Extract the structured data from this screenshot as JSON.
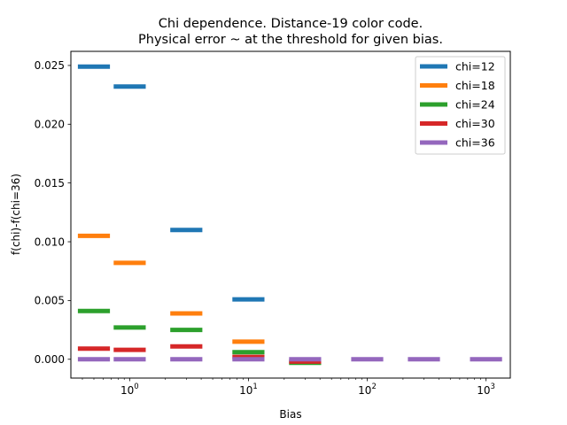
{
  "chart_data": {
    "type": "scatter",
    "marker": "horizontal-bar",
    "title_lines": [
      "Chi dependence. Distance-19 color code.",
      "Physical error ~ at the threshold for given bias."
    ],
    "xlabel": "Bias",
    "ylabel": "f(chi)-f(chi=36)",
    "xscale": "log",
    "xlim": [
      0.32,
      1600
    ],
    "ylim": [
      -0.0016,
      0.0262
    ],
    "x_ticks": [
      {
        "value": 1,
        "base": "10",
        "exp": "0"
      },
      {
        "value": 10,
        "base": "10",
        "exp": "1"
      },
      {
        "value": 100,
        "base": "10",
        "exp": "2"
      },
      {
        "value": 1000,
        "base": "10",
        "exp": "3"
      }
    ],
    "y_ticks": [
      {
        "value": 0.0,
        "label": "0.000"
      },
      {
        "value": 0.005,
        "label": "0.005"
      },
      {
        "value": 0.01,
        "label": "0.010"
      },
      {
        "value": 0.015,
        "label": "0.015"
      },
      {
        "value": 0.02,
        "label": "0.020"
      },
      {
        "value": 0.025,
        "label": "0.025"
      }
    ],
    "grid": false,
    "legend_position": "upper right",
    "series": [
      {
        "name": "chi=12",
        "color": "#1f77b4",
        "points": [
          {
            "x": 0.5,
            "y": 0.0249
          },
          {
            "x": 1.0,
            "y": 0.0232
          },
          {
            "x": 3.0,
            "y": 0.011
          },
          {
            "x": 10.0,
            "y": 0.0051
          }
        ]
      },
      {
        "name": "chi=18",
        "color": "#ff7f0e",
        "points": [
          {
            "x": 0.5,
            "y": 0.0105
          },
          {
            "x": 1.0,
            "y": 0.0082
          },
          {
            "x": 3.0,
            "y": 0.0039
          },
          {
            "x": 10.0,
            "y": 0.0015
          }
        ]
      },
      {
        "name": "chi=24",
        "color": "#2ca02c",
        "points": [
          {
            "x": 0.5,
            "y": 0.0041
          },
          {
            "x": 1.0,
            "y": 0.0027
          },
          {
            "x": 3.0,
            "y": 0.0025
          },
          {
            "x": 10.0,
            "y": 0.0006
          },
          {
            "x": 30.0,
            "y": -0.0003
          }
        ]
      },
      {
        "name": "chi=30",
        "color": "#d62728",
        "points": [
          {
            "x": 0.5,
            "y": 0.0009
          },
          {
            "x": 1.0,
            "y": 0.0008
          },
          {
            "x": 3.0,
            "y": 0.0011
          },
          {
            "x": 10.0,
            "y": 0.0002
          },
          {
            "x": 30.0,
            "y": -0.0002
          }
        ]
      },
      {
        "name": "chi=36",
        "color": "#9467bd",
        "points": [
          {
            "x": 0.5,
            "y": 0.0
          },
          {
            "x": 1.0,
            "y": 0.0
          },
          {
            "x": 3.0,
            "y": 0.0
          },
          {
            "x": 10.0,
            "y": 0.0
          },
          {
            "x": 30.0,
            "y": 0.0
          },
          {
            "x": 100.0,
            "y": 0.0
          },
          {
            "x": 300.0,
            "y": 0.0
          },
          {
            "x": 1000.0,
            "y": 0.0
          }
        ]
      }
    ]
  }
}
